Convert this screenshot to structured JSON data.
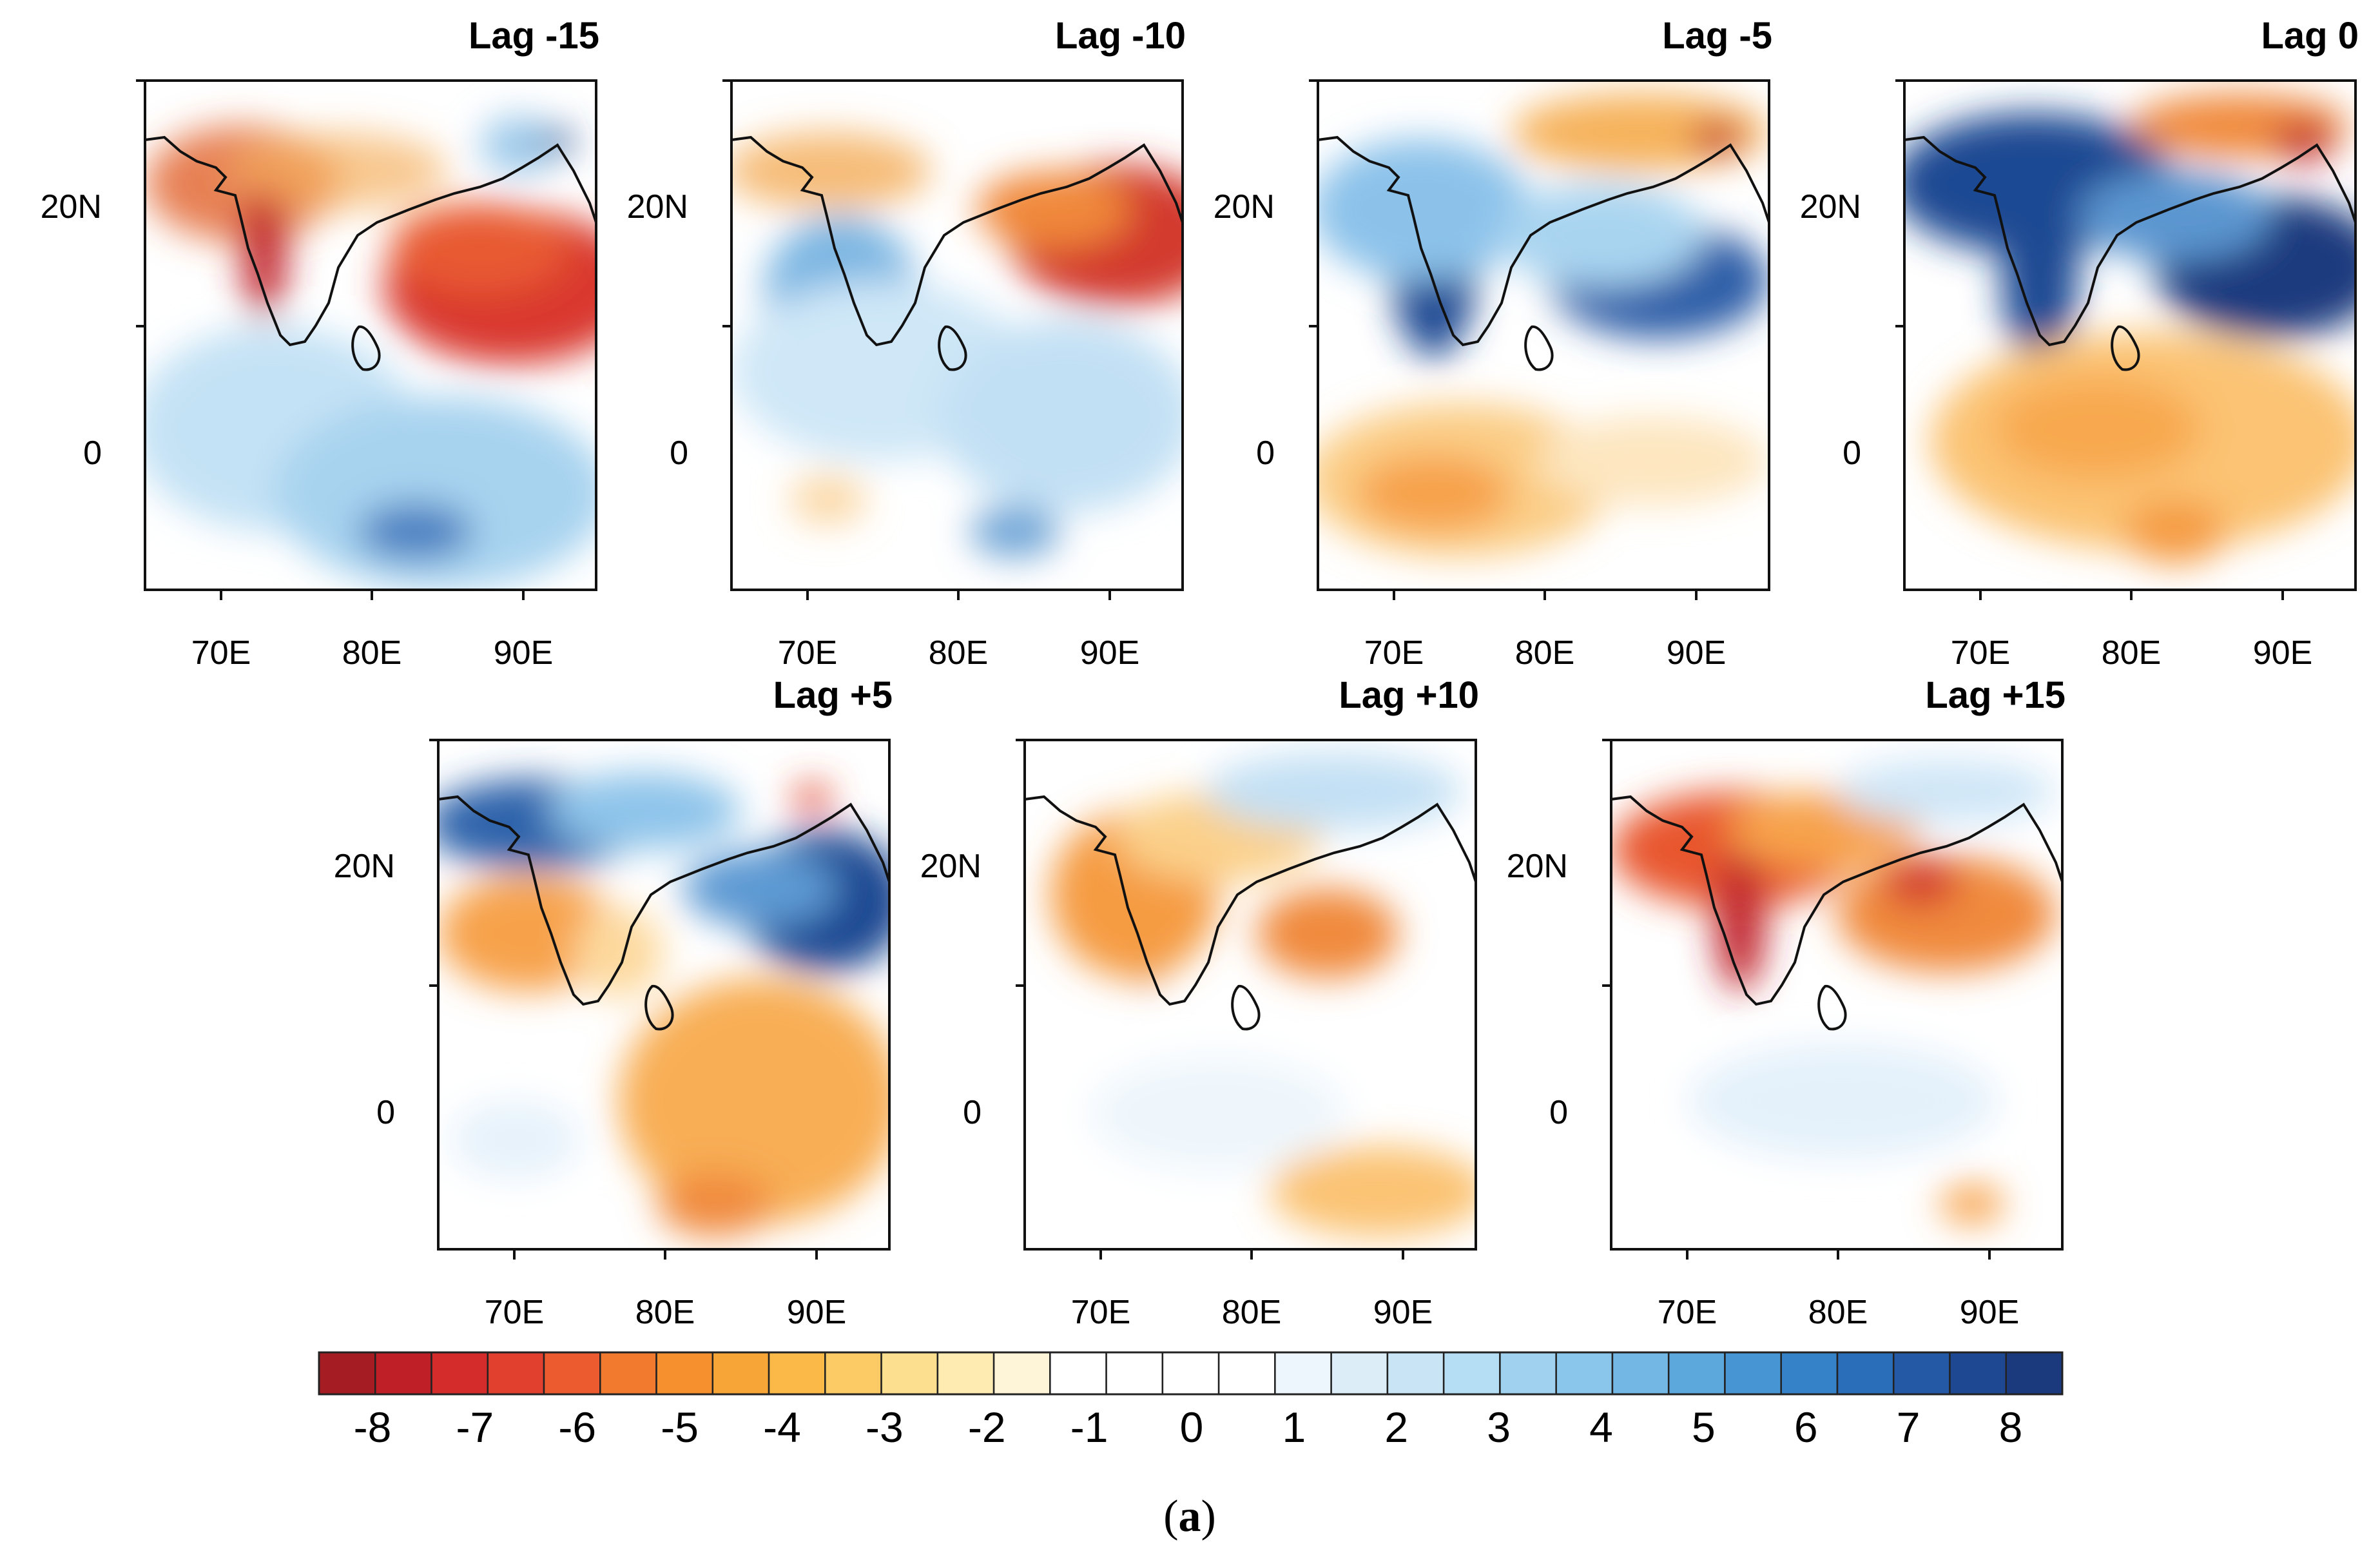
{
  "figure": {
    "caption_open": "(",
    "caption_letter": "a",
    "caption_close": ")",
    "x_tick_labels": [
      "70E",
      "80E",
      "90E"
    ],
    "y_tick_labels": [
      "20N",
      "0"
    ],
    "region": "Indian subcontinent and Indian Ocean",
    "lon_range": [
      65,
      95
    ],
    "lat_range": [
      -12,
      29
    ]
  },
  "panels": [
    {
      "title": "Lag -15"
    },
    {
      "title": "Lag -10"
    },
    {
      "title": "Lag -5"
    },
    {
      "title": "Lag 0"
    },
    {
      "title": "Lag +5"
    },
    {
      "title": "Lag +10"
    },
    {
      "title": "Lag +15"
    }
  ],
  "colorbar": {
    "labels": [
      "-8",
      "-7",
      "-6",
      "-5",
      "-4",
      "-3",
      "-2",
      "-1",
      "0",
      "1",
      "2",
      "3",
      "4",
      "5",
      "6",
      "7",
      "8"
    ],
    "colors": [
      "#a51c22",
      "#bf1f26",
      "#d42b2b",
      "#e1402e",
      "#ec5a2f",
      "#f27a2f",
      "#f6902f",
      "#f8a537",
      "#fbb948",
      "#fccb65",
      "#fde08f",
      "#fdebb2",
      "#fef5d8",
      "#ffffff",
      "#ffffff",
      "#ffffff",
      "#ffffff",
      "#edf6fc",
      "#dcedf8",
      "#c9e5f5",
      "#b5ddf3",
      "#a0d2f0",
      "#8ac6ec",
      "#73b7e4",
      "#5ca7dc",
      "#4795d3",
      "#3682c8",
      "#2a6db8",
      "#2459a5",
      "#1f4893",
      "#1b3a7e"
    ]
  }
}
